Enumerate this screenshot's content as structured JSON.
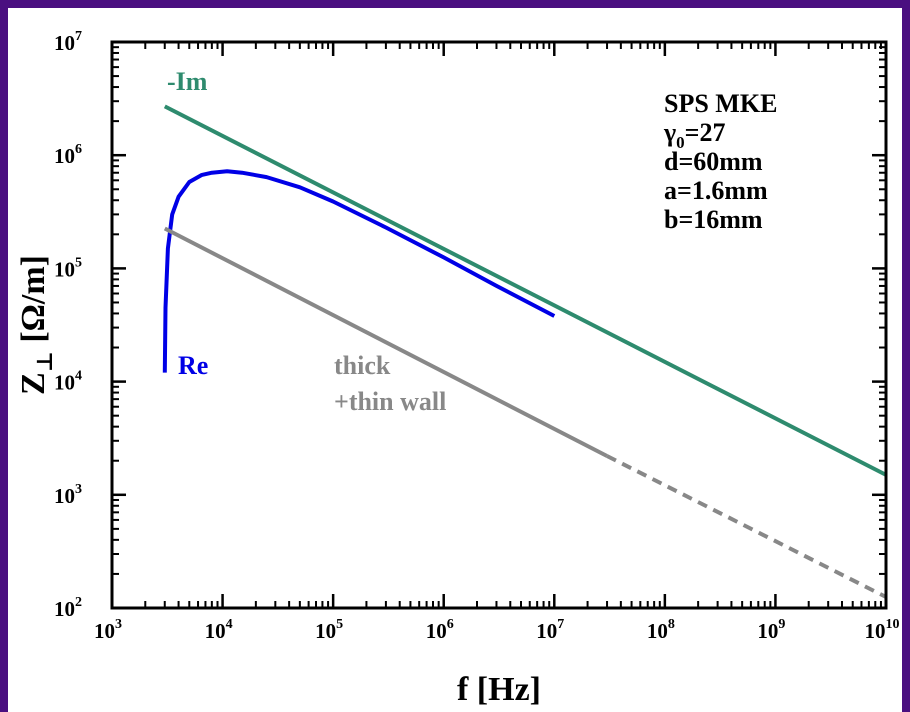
{
  "chart_data": {
    "type": "line",
    "xlabel": "f [Hz]",
    "ylabel": "Z⊥ [Ω/m]",
    "xscale": "log",
    "yscale": "log",
    "xlim": [
      1000,
      10000000000
    ],
    "ylim": [
      100,
      10000000
    ],
    "x_ticks": [
      {
        "base": "10",
        "exp": "3"
      },
      {
        "base": "10",
        "exp": "4"
      },
      {
        "base": "10",
        "exp": "5"
      },
      {
        "base": "10",
        "exp": "6"
      },
      {
        "base": "10",
        "exp": "7"
      },
      {
        "base": "10",
        "exp": "8"
      },
      {
        "base": "10",
        "exp": "9"
      },
      {
        "base": "10",
        "exp": "10"
      }
    ],
    "y_ticks": [
      {
        "base": "10",
        "exp": "2"
      },
      {
        "base": "10",
        "exp": "3"
      },
      {
        "base": "10",
        "exp": "4"
      },
      {
        "base": "10",
        "exp": "5"
      },
      {
        "base": "10",
        "exp": "6"
      },
      {
        "base": "10",
        "exp": "7"
      }
    ],
    "series": [
      {
        "name": "-Im",
        "color": "#2e8b6e",
        "x": [
          3000,
          10000000000
        ],
        "y": [
          2700000,
          1500
        ]
      },
      {
        "name": "Re",
        "color": "#0000e6",
        "x": [
          3000,
          3050,
          3200,
          3500,
          4000,
          5000,
          6500,
          8000,
          11000,
          15000,
          25000,
          50000,
          100000,
          300000,
          1000000,
          3000000,
          10000000
        ],
        "y": [
          12000,
          45000,
          150000,
          300000,
          430000,
          580000,
          670000,
          700000,
          720000,
          700000,
          640000,
          520000,
          390000,
          230000,
          125000,
          70000,
          38000
        ]
      },
      {
        "name": "thick\n+thin wall",
        "color": "#888888",
        "x": [
          3000,
          30000000
        ],
        "y": [
          225000,
          2200
        ]
      },
      {
        "name": "",
        "color": "#888888",
        "dashed": true,
        "x": [
          30000000,
          10000000000
        ],
        "y": [
          2200,
          125
        ]
      }
    ],
    "annotations": {
      "im_label": "-Im",
      "re_label": "Re",
      "wall_line1": "thick",
      "wall_line2": "+thin wall",
      "params": [
        {
          "base": "SPS MKE",
          "sub": "",
          "rest": ""
        },
        {
          "base": "γ",
          "sub": "0",
          "rest": "=27"
        },
        {
          "base": "d=60mm",
          "sub": "",
          "rest": ""
        },
        {
          "base": "a=1.6mm",
          "sub": "",
          "rest": ""
        },
        {
          "base": "b=16mm",
          "sub": "",
          "rest": ""
        }
      ]
    }
  }
}
